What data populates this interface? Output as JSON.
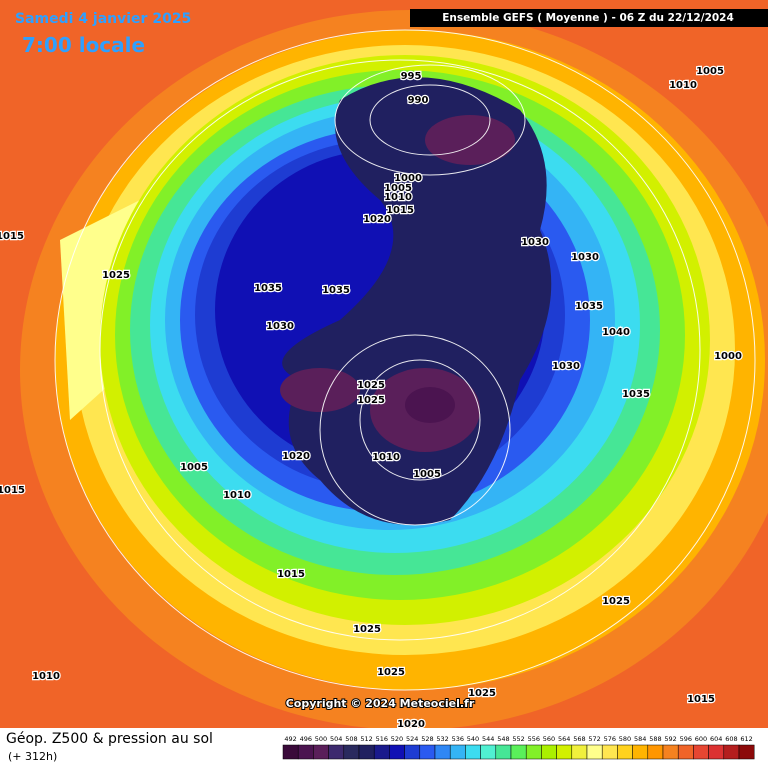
{
  "header": {
    "date": "Samedi 4 janvier 2025",
    "time": "7:00 locale",
    "model": "Ensemble GEFS  ( Moyenne )  -  06 Z du 22/12/2024"
  },
  "footer": {
    "title": "Géop. Z500 & pression au sol",
    "lead": "(+ 312h)",
    "copyright": "Copyright © 2024 Meteociel.fr"
  },
  "scale": {
    "values": [
      492,
      496,
      500,
      504,
      508,
      512,
      516,
      520,
      524,
      528,
      532,
      536,
      540,
      544,
      548,
      552,
      556,
      560,
      564,
      568,
      572,
      576,
      580,
      584,
      588,
      592,
      596,
      600,
      604,
      608,
      612
    ],
    "colors": [
      "#3a0a3a",
      "#4b1450",
      "#5a1f5a",
      "#3d2a6e",
      "#2a2a5e",
      "#202060",
      "#1a1a8c",
      "#1010b4",
      "#1e3cd2",
      "#2a5af0",
      "#2f87f5",
      "#34b4f5",
      "#3cdcf0",
      "#50f0d2",
      "#46e696",
      "#5af05a",
      "#82f028",
      "#aaf000",
      "#d2f000",
      "#f0f03c",
      "#ffff8c",
      "#ffe650",
      "#ffd21e",
      "#ffb400",
      "#ff9600",
      "#f58220",
      "#f06428",
      "#e64632",
      "#dc3232",
      "#b41e1e",
      "#8c0a0a"
    ]
  },
  "isobars": [
    "995",
    "990",
    "1000",
    "1005",
    "1010",
    "1015",
    "1020",
    "1030",
    "1030",
    "1035",
    "1040",
    "1030",
    "1035",
    "1000",
    "1005",
    "1010",
    "1015",
    "1025",
    "1035",
    "1035",
    "1030",
    "1025",
    "1025",
    "1020",
    "1010",
    "1005",
    "1005",
    "1015",
    "1010",
    "1015",
    "1025",
    "1025",
    "1025",
    "1010",
    "1025",
    "1015",
    "1020"
  ]
}
